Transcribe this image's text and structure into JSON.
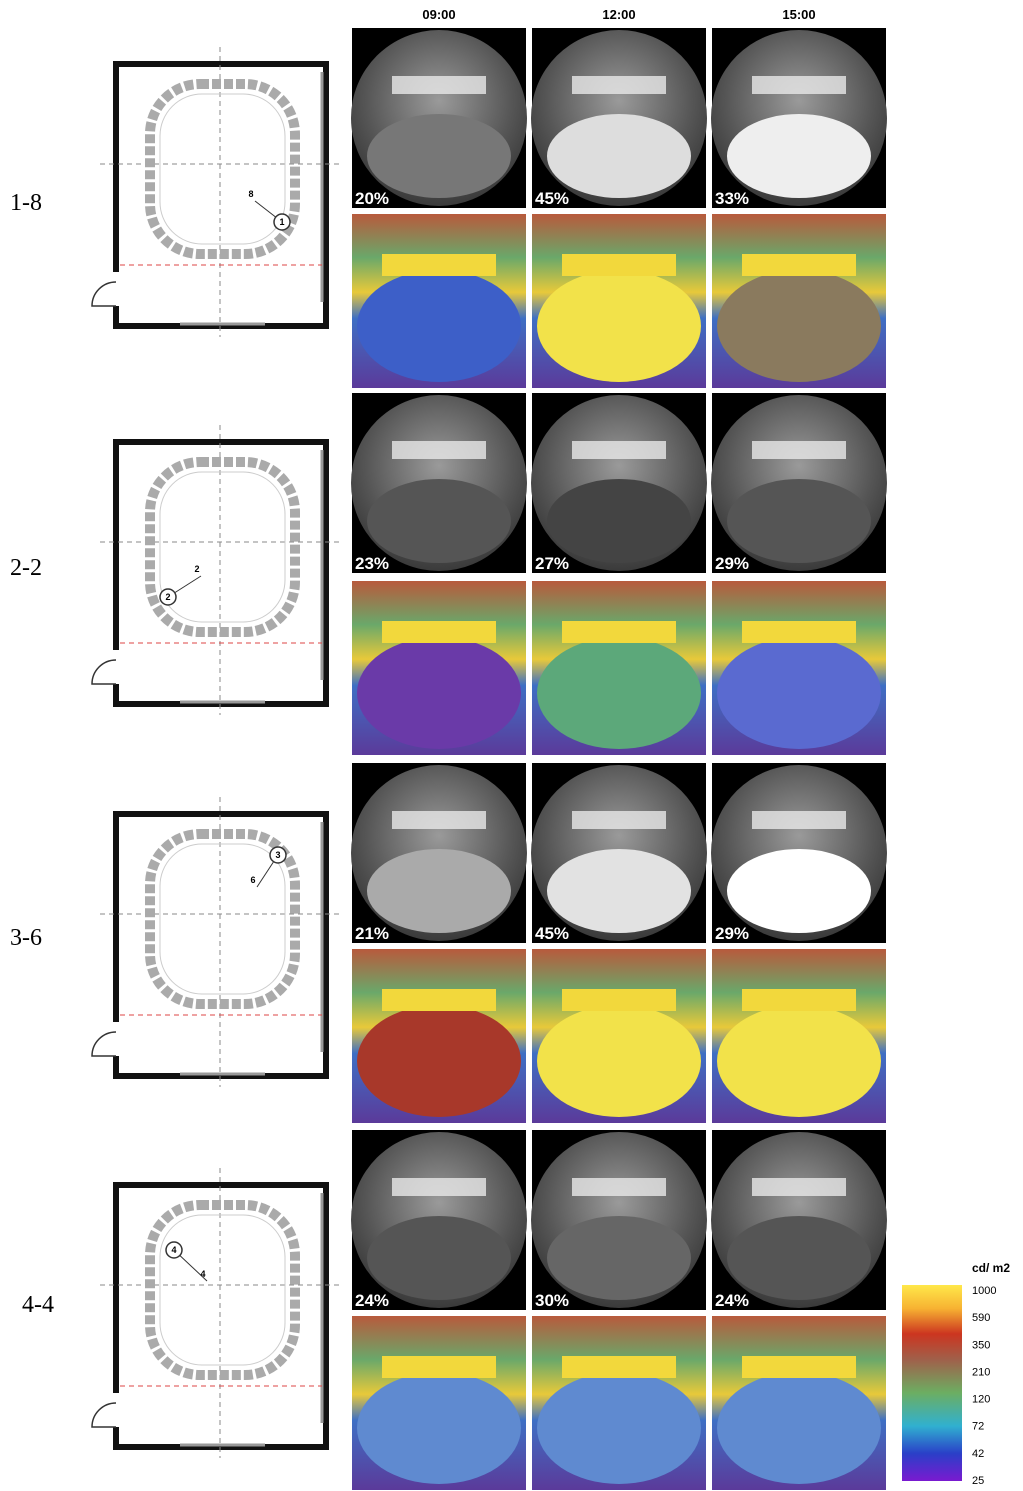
{
  "columns": [
    "09:00",
    "12:00",
    "15:00"
  ],
  "rows": [
    {
      "label": "1-8",
      "viewpoint": "1",
      "direction": "8",
      "percents": [
        "20%",
        "45%",
        "33%"
      ]
    },
    {
      "label": "2-2",
      "viewpoint": "2",
      "direction": "2",
      "percents": [
        "23%",
        "27%",
        "29%"
      ]
    },
    {
      "label": "3-6",
      "viewpoint": "3",
      "direction": "6",
      "percents": [
        "21%",
        "45%",
        "29%"
      ]
    },
    {
      "label": "4-4",
      "viewpoint": "4",
      "direction": "4",
      "percents": [
        "24%",
        "30%",
        "24%"
      ]
    }
  ],
  "legend": {
    "title": "cd/ m2",
    "ticks": [
      1000,
      590,
      350,
      210,
      120,
      72,
      42,
      25
    ]
  }
}
